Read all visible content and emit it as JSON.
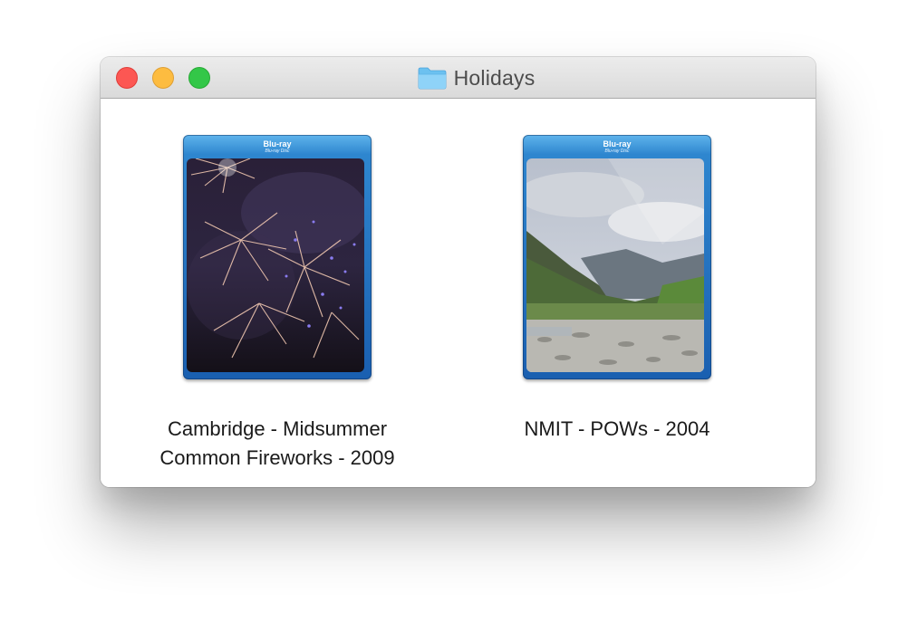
{
  "window": {
    "title": "Holidays",
    "title_icon": "folder-icon",
    "controls": [
      "close-button",
      "minimize-button",
      "zoom-button"
    ]
  },
  "case_brand": {
    "logo": "Blu-ray",
    "sub": "Blu-ray Disc"
  },
  "items": [
    {
      "name_line1": "Cambridge - Midsummer",
      "name_line2": "Common Fireworks - 2009",
      "icon": "bluray-fireworks-cover"
    },
    {
      "name_line1": "NMIT - POWs - 2004",
      "name_line2": "",
      "icon": "bluray-mountain-valley-cover"
    }
  ],
  "colors": {
    "close": "#fc5753",
    "minimize": "#fdbc40",
    "zoom": "#33c748",
    "bluray_case": "#2e86cf"
  }
}
